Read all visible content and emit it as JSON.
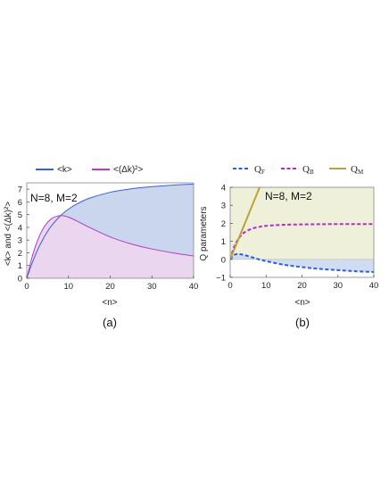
{
  "figure": {
    "caption_a": "(a)",
    "caption_b": "(b)"
  },
  "chart_data": [
    {
      "type": "area",
      "annotation": "N=8, M=2",
      "xlabel": "<n>",
      "ylabel": "<k> and <(Δk)²>",
      "xlim": [
        0,
        40
      ],
      "ylim": [
        0,
        7.5
      ],
      "xticks": [
        "0",
        "10",
        "20",
        "30",
        "40"
      ],
      "yticks": [
        "0",
        "1",
        "2",
        "3",
        "4",
        "5",
        "6",
        "7"
      ],
      "legend_position": "top",
      "series": [
        {
          "name": "<k>",
          "color": "#3b5fd6",
          "fill": "#c9d6ee",
          "x": [
            0,
            1,
            2,
            3,
            4,
            5,
            6,
            8,
            10,
            12,
            15,
            20,
            25,
            30,
            35,
            40
          ],
          "values": [
            0,
            0.94,
            1.78,
            2.51,
            3.14,
            3.69,
            4.15,
            4.89,
            5.43,
            5.84,
            6.29,
            6.76,
            7.03,
            7.2,
            7.32,
            7.4
          ]
        },
        {
          "name": "<(Δk)²>",
          "color": "#b43cc8",
          "fill": "#ead6ee",
          "x": [
            0,
            1,
            2,
            3,
            4,
            5,
            6,
            7,
            8,
            9,
            10,
            12,
            15,
            20,
            25,
            30,
            35,
            40
          ],
          "values": [
            0,
            1.35,
            2.45,
            3.3,
            3.95,
            4.4,
            4.7,
            4.85,
            4.92,
            4.9,
            4.8,
            4.5,
            4.0,
            3.25,
            2.7,
            2.3,
            2.0,
            1.75
          ]
        }
      ]
    },
    {
      "type": "line",
      "annotation": "N=8, M=2",
      "xlabel": "<n>",
      "ylabel": "Q parameters",
      "xlim": [
        0,
        40
      ],
      "ylim": [
        -1,
        4
      ],
      "xticks": [
        "0",
        "10",
        "20",
        "30",
        "40"
      ],
      "yticks": [
        "-1",
        "0",
        "1",
        "2",
        "3",
        "4"
      ],
      "legend_position": "top",
      "series": [
        {
          "name": "Q",
          "subscript": "F",
          "color": "#2b5ee0",
          "dash": "dashed",
          "x": [
            0,
            1,
            2,
            3,
            5,
            8,
            10,
            15,
            20,
            25,
            30,
            35,
            40
          ],
          "values": [
            0,
            0.23,
            0.3,
            0.28,
            0.18,
            0.0,
            -0.1,
            -0.3,
            -0.43,
            -0.53,
            -0.6,
            -0.66,
            -0.7
          ]
        },
        {
          "name": "Q",
          "subscript": "B",
          "color": "#b02ec6",
          "dash": "dashed",
          "x": [
            0,
            1,
            2,
            3,
            4,
            6,
            8,
            10,
            15,
            20,
            25,
            30,
            35,
            40
          ],
          "values": [
            0,
            0.65,
            1.05,
            1.32,
            1.5,
            1.7,
            1.8,
            1.86,
            1.92,
            1.94,
            1.95,
            1.96,
            1.96,
            1.96
          ]
        },
        {
          "name": "Q",
          "subscript": "M",
          "color": "#b6a33a",
          "dash": "solid",
          "x": [
            0,
            8.2
          ],
          "values": [
            0,
            4.0
          ]
        }
      ]
    }
  ]
}
